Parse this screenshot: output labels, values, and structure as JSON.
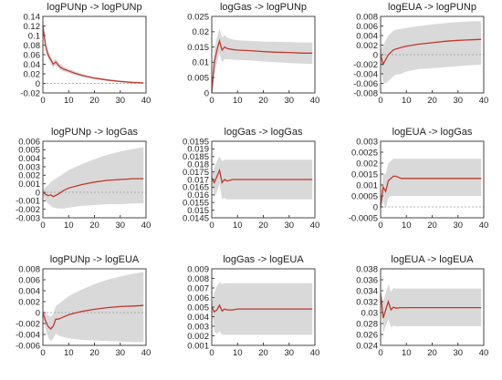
{
  "chart_data": [
    {
      "type": "line",
      "title": "logPUNp -> logPUNp",
      "ylim": [
        -0.02,
        0.14
      ],
      "yticks": [
        "0.14",
        "0.12",
        "0.1",
        "0.08",
        "0.06",
        "0.04",
        "0.02",
        "0",
        "-0.02"
      ],
      "xticks": [
        "0",
        "10",
        "20",
        "30",
        "40"
      ],
      "xlim": [
        0,
        40
      ],
      "zero_line": true,
      "x": [
        0,
        1,
        2,
        3,
        4,
        5,
        6,
        7,
        8,
        10,
        12,
        15,
        20,
        25,
        30,
        35,
        39
      ],
      "series": [
        {
          "values": [
            0.12,
            0.08,
            0.06,
            0.05,
            0.04,
            0.045,
            0.038,
            0.033,
            0.03,
            0.026,
            0.022,
            0.017,
            0.011,
            0.007,
            0.004,
            0.002,
            0.001
          ]
        }
      ],
      "band_upper": [
        0.13,
        0.09,
        0.068,
        0.058,
        0.047,
        0.052,
        0.044,
        0.039,
        0.035,
        0.03,
        0.026,
        0.02,
        0.013,
        0.009,
        0.006,
        0.004,
        0.003
      ],
      "band_lower": [
        0.11,
        0.07,
        0.052,
        0.042,
        0.033,
        0.038,
        0.032,
        0.027,
        0.025,
        0.022,
        0.018,
        0.014,
        0.009,
        0.005,
        0.002,
        0.0,
        -0.001
      ]
    },
    {
      "type": "line",
      "title": "logGas -> logPUNp",
      "ylim": [
        0,
        0.025
      ],
      "yticks": [
        "0.025",
        "0.02",
        "0.015",
        "0.01",
        "0.005",
        "0"
      ],
      "xticks": [
        "0",
        "10",
        "20",
        "30",
        "40"
      ],
      "xlim": [
        0,
        40
      ],
      "zero_line": false,
      "x": [
        0,
        1,
        2,
        3,
        4,
        5,
        6,
        8,
        10,
        15,
        20,
        25,
        30,
        35,
        39
      ],
      "series": [
        {
          "values": [
            0.0,
            0.01,
            0.014,
            0.017,
            0.014,
            0.015,
            0.0145,
            0.0142,
            0.014,
            0.0138,
            0.0135,
            0.0133,
            0.0132,
            0.013,
            0.013
          ]
        }
      ],
      "band_upper": [
        0.003,
        0.014,
        0.018,
        0.021,
        0.018,
        0.019,
        0.018,
        0.0175,
        0.0172,
        0.017,
        0.0168,
        0.0167,
        0.0166,
        0.0165,
        0.0165
      ],
      "band_lower": [
        -0.001,
        0.006,
        0.01,
        0.013,
        0.01,
        0.011,
        0.011,
        0.0109,
        0.0108,
        0.0106,
        0.0103,
        0.01,
        0.0098,
        0.0096,
        0.0095
      ]
    },
    {
      "type": "line",
      "title": "logEUA -> logPUNp",
      "ylim": [
        -0.008,
        0.008
      ],
      "yticks": [
        "0.008",
        "0.006",
        "0.004",
        "0.002",
        "0",
        "-0.002",
        "-0.004",
        "-0.006",
        "-0.008"
      ],
      "xticks": [
        "0",
        "10",
        "20",
        "30",
        "40"
      ],
      "xlim": [
        0,
        40
      ],
      "zero_line": true,
      "x": [
        0,
        1,
        2,
        3,
        4,
        5,
        6,
        8,
        10,
        15,
        20,
        25,
        30,
        35,
        39
      ],
      "series": [
        {
          "values": [
            0.0,
            -0.002,
            -0.001,
            0.0,
            0.0005,
            0.001,
            0.0012,
            0.0015,
            0.0018,
            0.0022,
            0.0025,
            0.0028,
            0.003,
            0.0031,
            0.0032
          ]
        }
      ],
      "band_upper": [
        0.001,
        0.002,
        0.003,
        0.004,
        0.0045,
        0.005,
        0.0052,
        0.0054,
        0.0056,
        0.006,
        0.0063,
        0.0066,
        0.0068,
        0.007,
        0.007
      ],
      "band_lower": [
        -0.001,
        -0.006,
        -0.006,
        -0.0055,
        -0.005,
        -0.0045,
        -0.0042,
        -0.004,
        -0.0035,
        -0.003,
        -0.0028,
        -0.0026,
        -0.0024,
        -0.0022,
        -0.0021
      ]
    },
    {
      "type": "line",
      "title": "logPUNp -> logGas",
      "ylim": [
        -0.003,
        0.006
      ],
      "yticks": [
        "0.006",
        "0.005",
        "0.004",
        "0.003",
        "0.002",
        "0.001",
        "0",
        "-0.001",
        "-0.002",
        "-0.003"
      ],
      "xticks": [
        "0",
        "10",
        "20",
        "30",
        "40"
      ],
      "xlim": [
        0,
        40
      ],
      "zero_line": true,
      "x": [
        0,
        1,
        2,
        3,
        4,
        6,
        8,
        10,
        15,
        20,
        25,
        30,
        35,
        39
      ],
      "series": [
        {
          "values": [
            0.0,
            -0.0002,
            -0.0004,
            -0.0003,
            -0.0005,
            -0.0002,
            0.0002,
            0.0005,
            0.0009,
            0.0012,
            0.0014,
            0.0015,
            0.0016,
            0.0016
          ]
        }
      ],
      "band_upper": [
        0.0002,
        0.0006,
        0.0008,
        0.0012,
        0.0014,
        0.0018,
        0.0022,
        0.0026,
        0.0033,
        0.0039,
        0.0044,
        0.0048,
        0.0051,
        0.0053
      ],
      "band_lower": [
        -0.0002,
        -0.001,
        -0.0013,
        -0.0016,
        -0.0018,
        -0.0019,
        -0.0019,
        -0.0018,
        -0.0016,
        -0.0015,
        -0.0014,
        -0.0014,
        -0.0013,
        -0.0013
      ]
    },
    {
      "type": "line",
      "title": "logGas -> logGas",
      "ylim": [
        0.0145,
        0.0195
      ],
      "yticks": [
        "0.0195",
        "0.019",
        "0.0185",
        "0.018",
        "0.0175",
        "0.017",
        "0.0165",
        "0.016",
        "0.0155",
        "0.015",
        "0.0145"
      ],
      "xticks": [
        "0",
        "10",
        "20",
        "30",
        "40"
      ],
      "xlim": [
        0,
        40
      ],
      "zero_line": false,
      "x": [
        0,
        1,
        2,
        3,
        4,
        5,
        6,
        8,
        10,
        15,
        20,
        25,
        30,
        35,
        39
      ],
      "series": [
        {
          "values": [
            0.0171,
            0.0168,
            0.0172,
            0.0176,
            0.0168,
            0.017,
            0.0169,
            0.017,
            0.017,
            0.017,
            0.017,
            0.017,
            0.017,
            0.017,
            0.017
          ]
        }
      ],
      "band_upper": [
        0.0172,
        0.0178,
        0.0182,
        0.0185,
        0.0182,
        0.0183,
        0.0183,
        0.0183,
        0.0183,
        0.0183,
        0.0183,
        0.0183,
        0.0183,
        0.0183,
        0.0183
      ],
      "band_lower": [
        0.017,
        0.0158,
        0.0162,
        0.0167,
        0.0157,
        0.0158,
        0.0157,
        0.0157,
        0.0157,
        0.0157,
        0.0157,
        0.0157,
        0.0157,
        0.0157,
        0.0157
      ]
    },
    {
      "type": "line",
      "title": "logEUA -> logGas",
      "ylim": [
        -0.0005,
        0.003
      ],
      "yticks": [
        "0.003",
        "0.0025",
        "0.002",
        "0.0015",
        "0.001",
        "0.0005",
        "0",
        "-0.0005"
      ],
      "xticks": [
        "0",
        "10",
        "20",
        "30",
        "40"
      ],
      "xlim": [
        0,
        40
      ],
      "zero_line": true,
      "x": [
        0,
        1,
        2,
        3,
        4,
        5,
        6,
        8,
        10,
        15,
        20,
        25,
        30,
        35,
        39
      ],
      "series": [
        {
          "values": [
            0.0,
            0.0009,
            0.0007,
            0.0012,
            0.0013,
            0.0014,
            0.0014,
            0.0013,
            0.0013,
            0.0013,
            0.0013,
            0.0013,
            0.0013,
            0.0013,
            0.0013
          ]
        }
      ],
      "band_upper": [
        0.0002,
        0.0015,
        0.0015,
        0.002,
        0.0021,
        0.0022,
        0.0022,
        0.0022,
        0.0022,
        0.0022,
        0.0022,
        0.0022,
        0.0022,
        0.0022,
        0.0022
      ],
      "band_lower": [
        -0.0002,
        0.0003,
        -0.0001,
        0.0004,
        0.0005,
        0.0005,
        0.0005,
        0.0005,
        0.0005,
        0.0005,
        0.0005,
        0.0005,
        0.0005,
        0.0005,
        0.0005
      ]
    },
    {
      "type": "line",
      "title": "logPUNp -> logEUA",
      "ylim": [
        -0.006,
        0.008
      ],
      "yticks": [
        "0.008",
        "0.006",
        "0.004",
        "0.002",
        "0",
        "-0.002",
        "-0.004",
        "-0.006"
      ],
      "xticks": [
        "0",
        "10",
        "20",
        "30",
        "40"
      ],
      "xlim": [
        0,
        40
      ],
      "zero_line": true,
      "x": [
        0,
        1,
        2,
        3,
        4,
        5,
        6,
        8,
        10,
        15,
        20,
        25,
        30,
        35,
        39
      ],
      "series": [
        {
          "values": [
            0.0,
            -0.0015,
            -0.0025,
            -0.003,
            -0.0025,
            -0.0012,
            -0.0012,
            -0.0008,
            -0.0004,
            0.0002,
            0.0006,
            0.0009,
            0.0011,
            0.0012,
            0.0013
          ]
        }
      ],
      "band_upper": [
        0.0002,
        0.0,
        -0.0005,
        -0.0008,
        -0.0003,
        0.0012,
        0.0015,
        0.0023,
        0.003,
        0.0042,
        0.0052,
        0.006,
        0.0066,
        0.0071,
        0.0074
      ],
      "band_lower": [
        -0.0002,
        -0.003,
        -0.0045,
        -0.0052,
        -0.0048,
        -0.0038,
        -0.0042,
        -0.0045,
        -0.0047,
        -0.005,
        -0.0051,
        -0.0052,
        -0.0053,
        -0.0054,
        -0.0054
      ]
    },
    {
      "type": "line",
      "title": "logGas -> logEUA",
      "ylim": [
        0.001,
        0.009
      ],
      "yticks": [
        "0.009",
        "0.008",
        "0.007",
        "0.006",
        "0.005",
        "0.004",
        "0.003",
        "0.002",
        "0.001"
      ],
      "xticks": [
        "0",
        "10",
        "20",
        "30",
        "40"
      ],
      "xlim": [
        0,
        40
      ],
      "zero_line": false,
      "x": [
        0,
        1,
        2,
        3,
        4,
        5,
        6,
        8,
        10,
        15,
        20,
        25,
        30,
        35,
        39
      ],
      "series": [
        {
          "values": [
            0.005,
            0.0045,
            0.0047,
            0.0052,
            0.0046,
            0.0048,
            0.0047,
            0.0047,
            0.0048,
            0.0048,
            0.0048,
            0.0048,
            0.0048,
            0.0048,
            0.0048
          ]
        }
      ],
      "band_upper": [
        0.0052,
        0.0065,
        0.0072,
        0.0076,
        0.0074,
        0.0075,
        0.0075,
        0.0075,
        0.0075,
        0.0075,
        0.0075,
        0.0075,
        0.0075,
        0.0075,
        0.0075
      ],
      "band_lower": [
        0.0048,
        0.0025,
        0.0022,
        0.0025,
        0.0021,
        0.0021,
        0.0021,
        0.0021,
        0.0021,
        0.0021,
        0.0021,
        0.0021,
        0.0021,
        0.0021,
        0.0021
      ]
    },
    {
      "type": "line",
      "title": "logEUA -> logEUA",
      "ylim": [
        0.024,
        0.038
      ],
      "yticks": [
        "0.038",
        "0.036",
        "0.034",
        "0.032",
        "0.03",
        "0.028",
        "0.026",
        "0.024"
      ],
      "xticks": [
        "0",
        "10",
        "20",
        "30",
        "40"
      ],
      "xlim": [
        0,
        40
      ],
      "zero_line": false,
      "x": [
        0,
        1,
        2,
        3,
        4,
        5,
        6,
        8,
        10,
        15,
        20,
        25,
        30,
        35,
        39
      ],
      "series": [
        {
          "values": [
            0.0335,
            0.029,
            0.0305,
            0.032,
            0.0305,
            0.031,
            0.0308,
            0.0309,
            0.0309,
            0.0309,
            0.0309,
            0.0309,
            0.0309,
            0.0309,
            0.0309
          ]
        }
      ],
      "band_upper": [
        0.0337,
        0.032,
        0.0335,
        0.0352,
        0.0338,
        0.0345,
        0.0344,
        0.0344,
        0.0344,
        0.0344,
        0.0344,
        0.0344,
        0.0344,
        0.0344,
        0.0344
      ],
      "band_lower": [
        0.0333,
        0.0262,
        0.0275,
        0.0288,
        0.0273,
        0.0276,
        0.0275,
        0.0275,
        0.0275,
        0.0275,
        0.0275,
        0.0275,
        0.0275,
        0.0275,
        0.0275
      ]
    }
  ],
  "colors": {
    "line": "#c0392b",
    "band": "#d9d9d9",
    "zero": "#999999",
    "axis": "#444444"
  }
}
